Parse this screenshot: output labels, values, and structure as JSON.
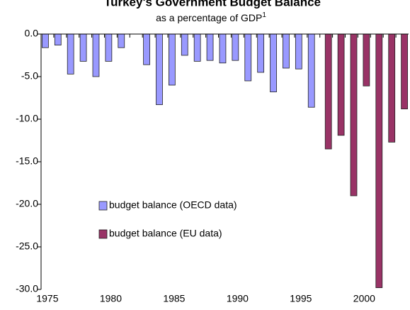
{
  "chart_data": {
    "type": "bar",
    "title": "Turkey's Government Budget Balance",
    "subtitle": "as a percentage of GDP",
    "subtitle_footnote": "1",
    "x": [
      1975,
      1976,
      1977,
      1978,
      1979,
      1980,
      1981,
      1982,
      1983,
      1984,
      1985,
      1986,
      1987,
      1988,
      1989,
      1990,
      1991,
      1992,
      1993,
      1994,
      1995,
      1996,
      1997,
      1998,
      1999,
      2000,
      2001,
      2002,
      2003
    ],
    "xlim": [
      1974.5,
      2003.5
    ],
    "xticks": [
      1975,
      1980,
      1985,
      1990,
      1995,
      2000
    ],
    "ylim": [
      -30,
      0
    ],
    "yticks": [
      {
        "value": 0,
        "label": "0.0"
      },
      {
        "value": -5,
        "label": "-5.0"
      },
      {
        "value": -10,
        "label": "-10.0"
      },
      {
        "value": -15,
        "label": "-15.0"
      },
      {
        "value": -20,
        "label": "-20.0"
      },
      {
        "value": -25,
        "label": "-25.0"
      },
      {
        "value": -30,
        "label": "-30.0"
      }
    ],
    "series": [
      {
        "name": "budget balance (OECD data)",
        "color": "#9999ff",
        "values": [
          -1.6,
          -1.3,
          -4.7,
          -3.2,
          -5.0,
          -3.2,
          -1.6,
          null,
          -3.6,
          -8.3,
          -6.0,
          -2.5,
          -3.2,
          -3.1,
          -3.4,
          -3.1,
          -5.5,
          -4.5,
          -6.8,
          -4.0,
          -4.1,
          -8.6,
          null,
          null,
          null,
          null,
          null,
          null,
          null
        ]
      },
      {
        "name": "budget balance (EU data)",
        "color": "#993366",
        "values": [
          null,
          null,
          null,
          null,
          null,
          null,
          null,
          null,
          null,
          null,
          null,
          null,
          null,
          null,
          null,
          null,
          null,
          null,
          null,
          null,
          null,
          null,
          -13.5,
          -11.9,
          -19.0,
          -6.1,
          -29.8,
          -12.7,
          -8.8
        ]
      }
    ]
  }
}
